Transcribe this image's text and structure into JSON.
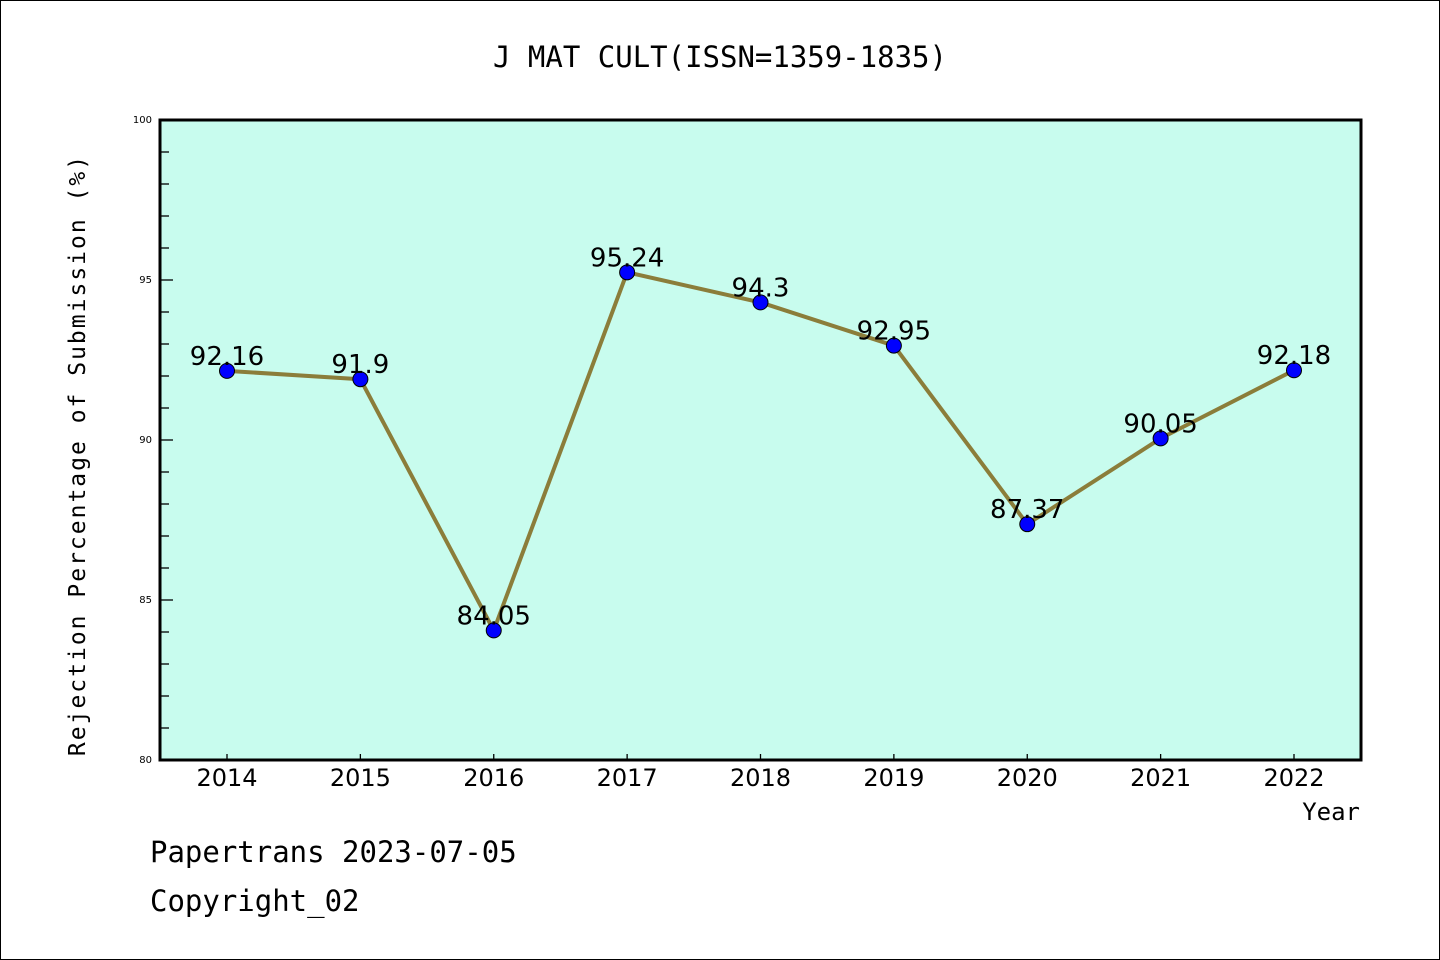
{
  "chart_data": {
    "type": "line",
    "title": "J MAT CULT(ISSN=1359-1835)",
    "xlabel": "Year",
    "ylabel": "Rejection Percentage of Submission (%)",
    "categories": [
      "2014",
      "2015",
      "2016",
      "2017",
      "2018",
      "2019",
      "2020",
      "2021",
      "2022"
    ],
    "values": [
      92.16,
      91.9,
      84.05,
      95.24,
      94.3,
      92.95,
      87.37,
      90.05,
      92.18
    ],
    "data_labels": [
      "92.16",
      "91.9",
      "84.05",
      "95.24",
      "94.3",
      "92.95",
      "87.37",
      "90.05",
      "92.18"
    ],
    "ylim": [
      80,
      100
    ],
    "yticks": [
      "80",
      "85",
      "90",
      "95",
      "100"
    ],
    "grid": false,
    "colors": {
      "background": "#c8fcee",
      "line": "#8b7d3a",
      "marker": "#0000ff"
    }
  },
  "footer": {
    "line1": "Papertrans 2023-07-05",
    "line2": "Copyright_02"
  }
}
